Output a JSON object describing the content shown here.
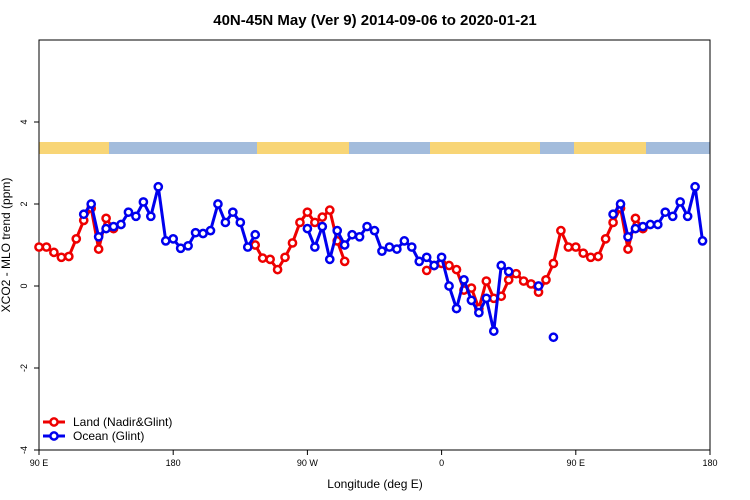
{
  "chart_data": {
    "type": "line",
    "title": "40N-45N May (Ver 9)   2014-09-06 to 2020-01-21",
    "x_label": "Longitude (deg E)",
    "y_label": "XCO2 - MLO trend (ppm)",
    "x": [
      90,
      95,
      100,
      105,
      110,
      115,
      120,
      125,
      130,
      135,
      140,
      145,
      150,
      155,
      160,
      165,
      170,
      175,
      180,
      185,
      190,
      195,
      200,
      205,
      210,
      215,
      220,
      225,
      230,
      235,
      240,
      245,
      250,
      255,
      260,
      265,
      270,
      275,
      280,
      285,
      290,
      295,
      300,
      305,
      310,
      315,
      320,
      325,
      330,
      335,
      340,
      345,
      350,
      355,
      360,
      365,
      370,
      375,
      380,
      385,
      390,
      395,
      400,
      405,
      410,
      415,
      420,
      425,
      430,
      435,
      440,
      445,
      450,
      455,
      460,
      465,
      470,
      475,
      480,
      485,
      490,
      495,
      500,
      505,
      510,
      515,
      520,
      525,
      530,
      535,
      540
    ],
    "series": [
      {
        "name": "Land (Nadir&Glint)",
        "color": "#ee0000",
        "values": [
          0.95,
          0.95,
          0.82,
          0.7,
          0.72,
          1.15,
          1.6,
          1.9,
          0.9,
          1.65,
          1.4,
          null,
          null,
          null,
          null,
          null,
          null,
          null,
          null,
          null,
          null,
          null,
          null,
          null,
          null,
          null,
          null,
          null,
          null,
          1.0,
          0.68,
          0.65,
          0.4,
          0.7,
          1.05,
          1.55,
          1.8,
          1.55,
          1.68,
          1.85,
          1.1,
          0.6,
          null,
          null,
          null,
          null,
          null,
          null,
          null,
          null,
          null,
          null,
          0.38,
          0.5,
          0.55,
          0.5,
          0.4,
          -0.1,
          -0.05,
          -0.55,
          0.12,
          -0.3,
          -0.25,
          0.15,
          0.3,
          0.12,
          0.05,
          -0.15,
          0.15,
          0.55,
          1.35,
          0.95,
          0.95,
          0.8,
          0.7,
          0.72,
          1.15,
          1.55,
          1.9,
          0.9,
          1.65,
          1.4,
          null,
          null,
          null,
          null,
          null,
          null,
          null,
          null,
          null
        ]
      },
      {
        "name": "Ocean (Glint)",
        "color": "#0000ee",
        "values": [
          null,
          null,
          null,
          null,
          null,
          null,
          1.75,
          2.0,
          1.2,
          1.4,
          1.45,
          1.5,
          1.8,
          1.7,
          2.05,
          1.7,
          2.42,
          1.1,
          1.15,
          0.92,
          0.98,
          1.3,
          1.28,
          1.35,
          2.0,
          1.55,
          1.8,
          1.55,
          0.95,
          1.25,
          null,
          null,
          null,
          null,
          null,
          null,
          1.4,
          0.95,
          1.45,
          0.65,
          1.35,
          1.0,
          1.25,
          1.2,
          1.45,
          1.35,
          0.85,
          0.95,
          0.9,
          1.1,
          0.95,
          0.6,
          0.7,
          0.5,
          0.7,
          0.0,
          -0.55,
          0.15,
          -0.35,
          -0.65,
          -0.3,
          -1.1,
          0.5,
          0.35,
          null,
          null,
          null,
          0.0,
          null,
          -1.25,
          null,
          null,
          null,
          null,
          null,
          null,
          null,
          1.75,
          2.0,
          1.2,
          1.4,
          1.45,
          1.5,
          1.5,
          1.8,
          1.7,
          2.05,
          1.7,
          2.42,
          1.1,
          null
        ]
      }
    ],
    "xlim": [
      90,
      540
    ],
    "xticks": [
      {
        "value": 90,
        "label": "90 E"
      },
      {
        "value": 180,
        "label": "180"
      },
      {
        "value": 270,
        "label": "90 W"
      },
      {
        "value": 360,
        "label": "0"
      },
      {
        "value": 450,
        "label": "90 E"
      },
      {
        "value": 540,
        "label": "180"
      }
    ],
    "ylim": [
      -4,
      6
    ],
    "yticks": [
      -4,
      -2,
      0,
      2,
      4
    ],
    "legend": "bottom-left"
  }
}
